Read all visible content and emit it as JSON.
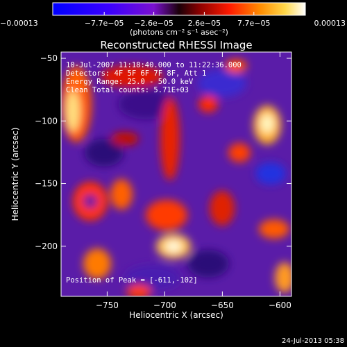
{
  "chart_data": {
    "type": "heatmap",
    "title": "Reconstructed RHESSI Image",
    "xlabel": "Heliocentric X (arcsec)",
    "ylabel": "Heliocentric Y (arcsec)",
    "xlim": [
      -790,
      -590
    ],
    "ylim": [
      -240,
      -45
    ],
    "x_ticks": [
      -750,
      -700,
      -650,
      -600
    ],
    "x_tick_labels": [
      "−750",
      "−700",
      "−650",
      "−600"
    ],
    "y_ticks": [
      -50,
      -100,
      -150,
      -200
    ],
    "y_tick_labels": [
      "−50",
      "−100",
      "−150",
      "−200"
    ],
    "colorbar": {
      "min": -0.00013,
      "max": 0.00013,
      "ticks": [
        -0.00013,
        -7.7e-05,
        -2.6e-05,
        2.6e-05,
        7.7e-05,
        0.00013
      ],
      "tick_labels": [
        "−0.00013",
        "−7.7e−05",
        "−2.6e−05",
        "2.6e−05",
        "7.7e−05",
        "0.00013"
      ],
      "unit_label": "(photons cm⁻² s⁻¹ asec⁻²)"
    },
    "annotations": {
      "time_range": "10-Jul-2007 11:18:40.000 to 11:22:36.000",
      "detectors": "Detectors: 4F 5F 6F 7F 8F, Att 1",
      "energy_range": "Energy Range: 25.0 - 50.0 keV",
      "method_counts": "Clean     Total counts: 5.71E+03",
      "peak_position": "Position of Peak = [-611,-102]"
    },
    "timestamp": "24-Jul-2013 05:38",
    "peak": {
      "x": -611,
      "y": -102
    }
  }
}
